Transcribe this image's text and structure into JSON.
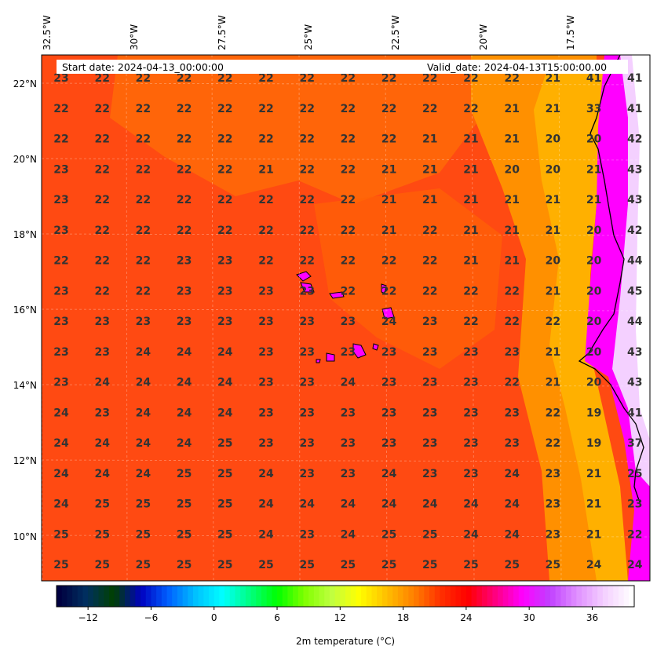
{
  "header": {
    "start_date": "Start date: 2024-04-13_00:00:00",
    "valid_date": "Valid_date: 2024-04-13T15:00:00.00"
  },
  "map": {
    "lon_labels": [
      "32.5°W",
      "30°W",
      "27.5°W",
      "25°W",
      "22.5°W",
      "20°W",
      "17.5°W"
    ],
    "lat_labels": [
      "22°N",
      "20°N",
      "18°N",
      "16°N",
      "14°N",
      "12°N",
      "10°N"
    ],
    "grid_values": [
      [
        "23",
        "22",
        "22",
        "22",
        "22",
        "22",
        "22",
        "22",
        "22",
        "22",
        "22",
        "22",
        "21",
        "41",
        "41"
      ],
      [
        "22",
        "22",
        "22",
        "22",
        "22",
        "22",
        "22",
        "22",
        "22",
        "22",
        "22",
        "21",
        "21",
        "33",
        "41"
      ],
      [
        "22",
        "22",
        "22",
        "22",
        "22",
        "22",
        "22",
        "22",
        "22",
        "21",
        "21",
        "21",
        "20",
        "20",
        "42"
      ],
      [
        "23",
        "22",
        "22",
        "22",
        "22",
        "21",
        "22",
        "22",
        "21",
        "21",
        "21",
        "20",
        "20",
        "21",
        "43"
      ],
      [
        "23",
        "22",
        "22",
        "22",
        "22",
        "22",
        "22",
        "22",
        "21",
        "21",
        "21",
        "21",
        "21",
        "21",
        "43"
      ],
      [
        "23",
        "22",
        "22",
        "22",
        "22",
        "22",
        "22",
        "22",
        "21",
        "22",
        "21",
        "21",
        "21",
        "20",
        "42"
      ],
      [
        "22",
        "22",
        "22",
        "23",
        "23",
        "22",
        "22",
        "22",
        "22",
        "22",
        "21",
        "21",
        "20",
        "20",
        "44"
      ],
      [
        "23",
        "22",
        "22",
        "23",
        "23",
        "23",
        "23",
        "22",
        "22",
        "22",
        "22",
        "22",
        "21",
        "20",
        "45"
      ],
      [
        "23",
        "23",
        "23",
        "23",
        "23",
        "23",
        "23",
        "23",
        "24",
        "23",
        "22",
        "22",
        "22",
        "20",
        "44"
      ],
      [
        "23",
        "23",
        "24",
        "24",
        "24",
        "23",
        "23",
        "23",
        "23",
        "23",
        "23",
        "23",
        "21",
        "20",
        "43"
      ],
      [
        "23",
        "24",
        "24",
        "24",
        "24",
        "23",
        "23",
        "24",
        "23",
        "23",
        "23",
        "22",
        "21",
        "20",
        "43"
      ],
      [
        "24",
        "23",
        "24",
        "24",
        "24",
        "23",
        "23",
        "23",
        "23",
        "23",
        "23",
        "23",
        "22",
        "19",
        "41"
      ],
      [
        "24",
        "24",
        "24",
        "24",
        "25",
        "23",
        "23",
        "23",
        "23",
        "23",
        "23",
        "23",
        "22",
        "19",
        "37"
      ],
      [
        "24",
        "24",
        "24",
        "25",
        "25",
        "24",
        "23",
        "23",
        "24",
        "23",
        "23",
        "24",
        "23",
        "21",
        "25"
      ],
      [
        "24",
        "25",
        "25",
        "25",
        "25",
        "24",
        "24",
        "24",
        "24",
        "24",
        "24",
        "24",
        "23",
        "21",
        "23"
      ],
      [
        "25",
        "25",
        "25",
        "25",
        "25",
        "24",
        "23",
        "24",
        "25",
        "25",
        "24",
        "24",
        "23",
        "21",
        "22"
      ],
      [
        "25",
        "25",
        "25",
        "25",
        "25",
        "25",
        "25",
        "25",
        "25",
        "25",
        "25",
        "25",
        "25",
        "24",
        "24"
      ]
    ]
  },
  "colorbar": {
    "ticks": [
      "−12",
      "−6",
      "0",
      "6",
      "12",
      "18",
      "24",
      "30",
      "36"
    ],
    "tick_values": [
      -12,
      -6,
      0,
      6,
      12,
      18,
      24,
      30,
      36
    ],
    "range": [
      -15,
      40
    ],
    "title": "2m temperature ($^\\circ$C)",
    "title_display": "2m temperature (°C)",
    "colors": [
      "#000040",
      "#003060",
      "#004000",
      "#0000c0",
      "#0060ff",
      "#00c0ff",
      "#00ffff",
      "#00ff80",
      "#00ff00",
      "#80ff00",
      "#c0ff40",
      "#ffff00",
      "#ffc000",
      "#ff8000",
      "#ff3000",
      "#ff0000",
      "#ff0080",
      "#ff00ff",
      "#c040ff",
      "#e090ff",
      "#f4d0ff",
      "#ffffff"
    ]
  },
  "colors": {
    "field_base": "#ff4a12",
    "field_warm": "#ff6a00",
    "coast_warm": "#ffa500",
    "hot": "#ff00ff",
    "value_text": "#333333"
  }
}
